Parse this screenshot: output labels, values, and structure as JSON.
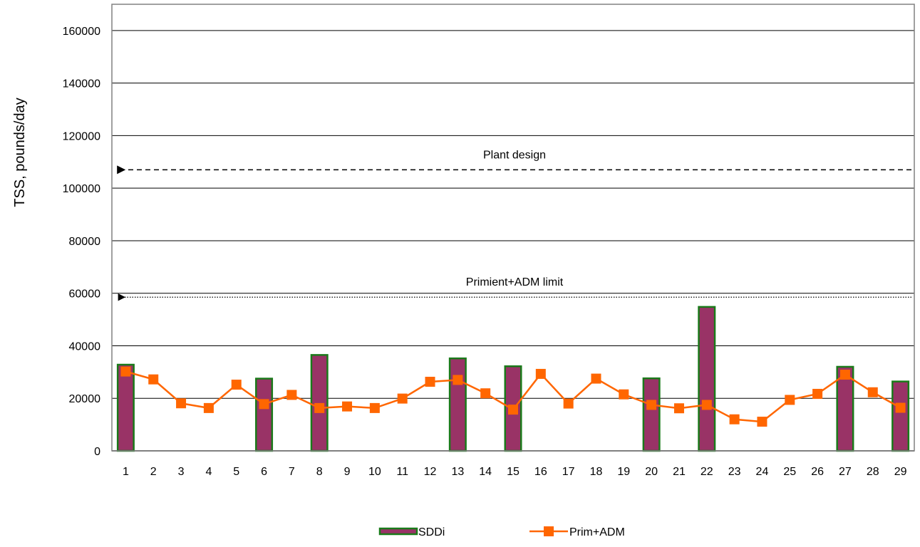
{
  "chart_data": {
    "type": "bar",
    "title": "",
    "xlabel": "",
    "ylabel": "TSS, pounds/day",
    "ylim": [
      0,
      170000
    ],
    "yticks": [
      0,
      20000,
      40000,
      60000,
      80000,
      100000,
      120000,
      140000,
      160000
    ],
    "grid": true,
    "legend_position": "bottom",
    "categories": [
      "1",
      "2",
      "3",
      "4",
      "5",
      "6",
      "7",
      "8",
      "9",
      "10",
      "11",
      "12",
      "13",
      "14",
      "15",
      "16",
      "17",
      "18",
      "19",
      "20",
      "21",
      "22",
      "23",
      "24",
      "25",
      "26",
      "27",
      "28",
      "29"
    ],
    "series": [
      {
        "name": "SDDi",
        "type": "bar",
        "color": "#993366",
        "edge_color": "#1a7a1a",
        "values": [
          32800,
          null,
          null,
          null,
          null,
          27500,
          null,
          36500,
          null,
          null,
          null,
          null,
          35200,
          null,
          32200,
          null,
          null,
          null,
          null,
          27600,
          null,
          54800,
          null,
          null,
          null,
          null,
          32000,
          null,
          26400
        ]
      },
      {
        "name": "Prim+ADM",
        "type": "line",
        "color": "#ff6600",
        "marker": "square",
        "values": [
          30200,
          27200,
          18100,
          16300,
          25200,
          17800,
          21300,
          16300,
          16900,
          16300,
          19900,
          26300,
          27000,
          21900,
          15700,
          29300,
          18000,
          27500,
          21500,
          17500,
          16200,
          17500,
          12000,
          11100,
          19400,
          21700,
          29000,
          22300,
          16400
        ]
      }
    ],
    "annotations": [
      {
        "text": "Plant design",
        "value": 107000,
        "style": "dashed",
        "arrow": "left"
      },
      {
        "text": "Primient+ADM limit",
        "value": 58500,
        "style": "dotted",
        "arrow": "left"
      }
    ]
  }
}
